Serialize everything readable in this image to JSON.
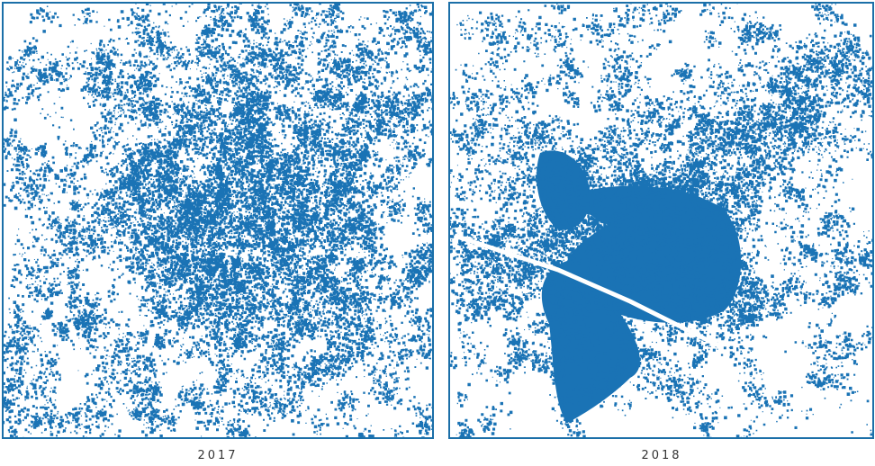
{
  "panels": [
    {
      "label": "2017"
    },
    {
      "label": "2018"
    }
  ]
}
